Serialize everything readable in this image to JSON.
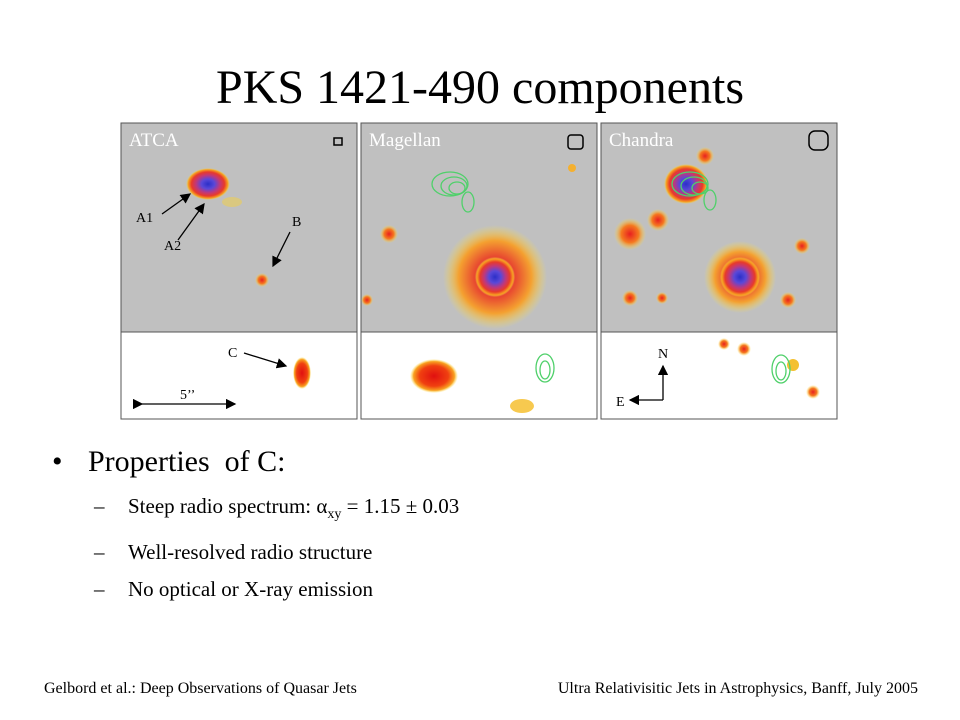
{
  "slide": {
    "title": "PKS 1421-490 components",
    "panels": [
      {
        "label": "ATCA"
      },
      {
        "label": "Magellan"
      },
      {
        "label": "Chandra"
      }
    ],
    "annotations": {
      "a1": "A1",
      "a2": "A2",
      "b": "B",
      "c": "C",
      "scale": "5’’",
      "north": "N",
      "east": "E"
    },
    "bullet": {
      "text": "Properties  of C:",
      "marker": "•"
    },
    "sub_bullets": [
      {
        "prefix": "Steep radio spectrum: ",
        "alpha": "α",
        "subscript": "xy",
        "suffix": " = 1.15 ± 0.03"
      },
      {
        "text": "Well-resolved radio structure"
      },
      {
        "text": "No optical or X-ray emission"
      }
    ],
    "dash": "–",
    "footer": {
      "left": "Gelbord et al.: Deep Observations of Quasar Jets",
      "right": "Ultra Relativisitic Jets in Astrophysics, Banff, July 2005"
    },
    "colors": {
      "panel_bg": "#c0c0c0",
      "contour": "#4fd06a",
      "core_blue": "#3b3fd8"
    }
  }
}
